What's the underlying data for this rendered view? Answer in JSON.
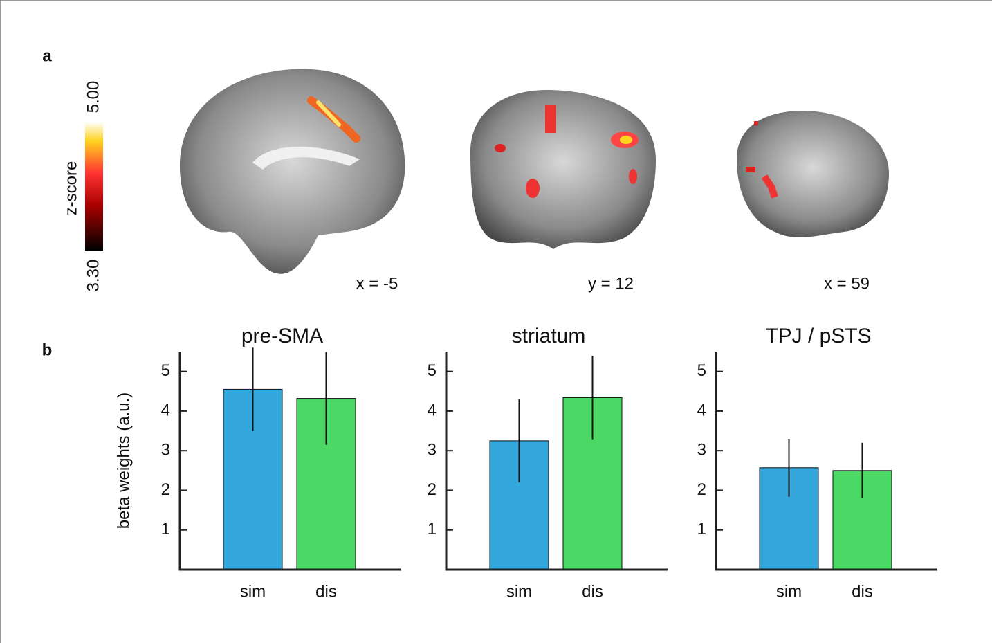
{
  "panel_labels": [
    "a",
    "b"
  ],
  "colorbar": {
    "label": "z-score",
    "min": {
      "value": 3.3,
      "label": "3.30"
    },
    "max": {
      "value": 5.0,
      "label": "5.00"
    }
  },
  "slices": [
    "x = -5",
    "y = 12",
    "x = 59"
  ],
  "chart_data": [
    {
      "type": "bar",
      "title": "pre-SMA",
      "y_label": "beta weights (a.u.)",
      "categories": [
        "sim",
        "dis"
      ],
      "values": [
        4.55,
        4.32
      ],
      "errors": [
        1.05,
        1.17
      ],
      "colors": [
        "#33a6db",
        "#4cd865"
      ],
      "ylim": [
        0,
        5.5
      ],
      "yticks": [
        1,
        2,
        3,
        4,
        5
      ]
    },
    {
      "type": "bar",
      "title": "striatum",
      "categories": [
        "sim",
        "dis"
      ],
      "values": [
        3.25,
        4.34
      ],
      "errors": [
        1.05,
        1.05
      ],
      "colors": [
        "#33a6db",
        "#4cd865"
      ],
      "ylim": [
        0,
        5.5
      ],
      "yticks": [
        1,
        2,
        3,
        4,
        5
      ]
    },
    {
      "type": "bar",
      "title": "TPJ / pSTS",
      "categories": [
        "sim",
        "dis"
      ],
      "values": [
        2.57,
        2.5
      ],
      "errors": [
        0.73,
        0.7
      ],
      "colors": [
        "#33a6db",
        "#4cd865"
      ],
      "ylim": [
        0,
        5.5
      ],
      "yticks": [
        1,
        2,
        3,
        4,
        5
      ]
    }
  ]
}
